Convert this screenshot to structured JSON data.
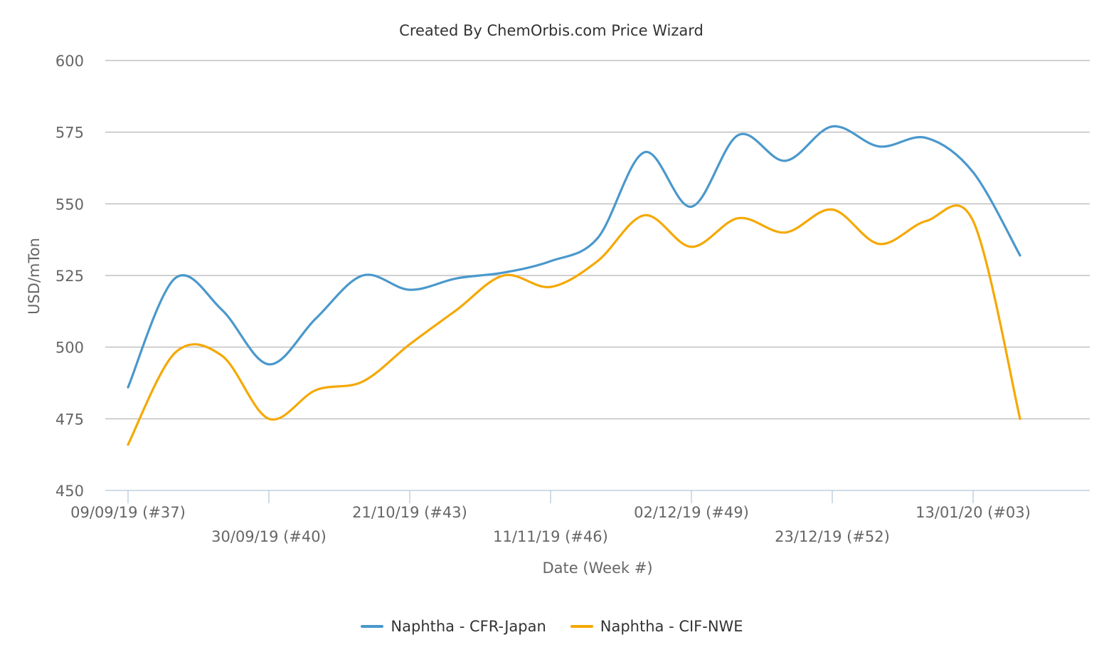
{
  "chart_data": {
    "type": "line",
    "title": "Created By ChemOrbis.com Price Wizard",
    "xlabel": "Date (Week #)",
    "ylabel": "USD/mTon",
    "ylim": [
      450,
      600
    ],
    "yticks": [
      450,
      475,
      500,
      525,
      550,
      575,
      600
    ],
    "grid": true,
    "legend_position": "bottom-center",
    "x_week_ticks": [
      "09/09/19 (#37)",
      "30/09/19 (#40)",
      "21/10/19 (#43)",
      "11/11/19 (#46)",
      "02/12/19 (#49)",
      "23/12/19 (#52)",
      "13/01/20 (#03)"
    ],
    "x": [
      "09/09/19",
      "16/09/19",
      "23/09/19",
      "30/09/19",
      "07/10/19",
      "14/10/19",
      "21/10/19",
      "28/10/19",
      "04/11/19",
      "11/11/19",
      "18/11/19",
      "25/11/19",
      "02/12/19",
      "09/12/19",
      "16/12/19",
      "23/12/19",
      "30/12/19",
      "06/01/20",
      "13/01/20",
      "20/01/20"
    ],
    "series": [
      {
        "name": "Naphtha - CFR-Japan",
        "color": "#4a98cc",
        "values": [
          486,
          524,
          513,
          494,
          510,
          525,
          520,
          524,
          526,
          530,
          538,
          568,
          549,
          574,
          565,
          577,
          570,
          573,
          561,
          532
        ]
      },
      {
        "name": "Naphtha - CIF-NWE",
        "color": "#f5a800",
        "values": [
          466,
          498,
          497,
          475,
          485,
          488,
          501,
          513,
          525,
          521,
          530,
          546,
          535,
          545,
          540,
          548,
          536,
          544,
          544,
          475
        ]
      }
    ]
  }
}
